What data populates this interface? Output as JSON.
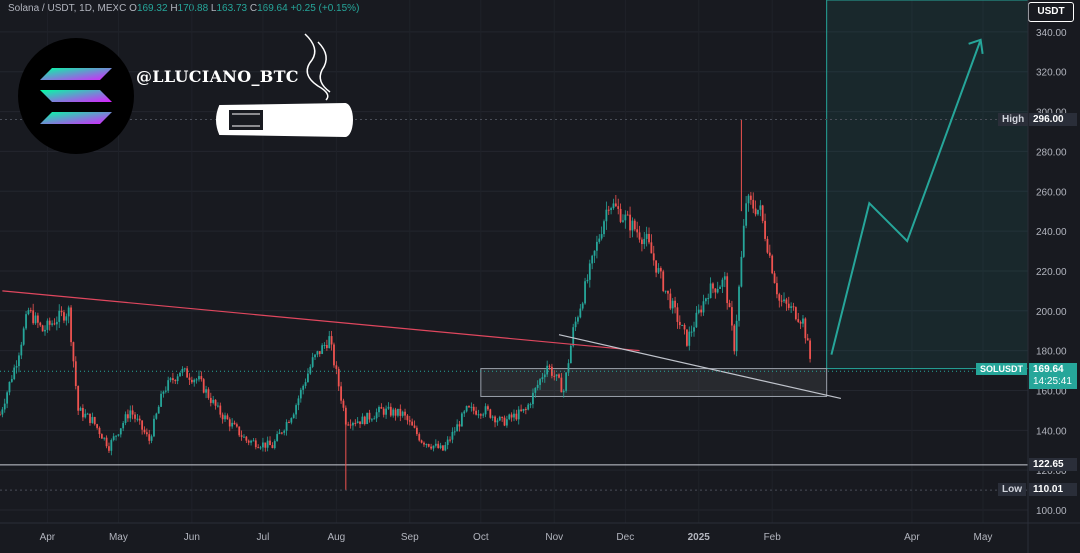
{
  "header": {
    "symbol_line": "Solana / USDT, 1D, MEXC",
    "open_label": "O",
    "open": "169.32",
    "high_label": "H",
    "high": "170.88",
    "low_label": "L",
    "low": "163.73",
    "close_label": "C",
    "close": "169.64",
    "change": "+0.25 (+0.15%)"
  },
  "watermark": {
    "handle": "@LLUCIANO_BTC",
    "logo": "solana-logo-icon",
    "illustration": "cigar-icon"
  },
  "currency_button": "USDT",
  "colors": {
    "up": "#26a69a",
    "down": "#ef5350",
    "background": "#181a20",
    "trendline": "#e0475e",
    "projection": "#26a69a"
  },
  "chart_data": {
    "type": "candlestick",
    "title": "",
    "y_ticks": [
      100,
      120,
      140,
      160,
      180,
      200,
      220,
      240,
      260,
      280,
      300,
      320,
      340
    ],
    "y_tick_labels": [
      "100.00",
      "120.00",
      "140.00",
      "160.00",
      "180.00",
      "200.00",
      "220.00",
      "240.00",
      "260.00",
      "280.00",
      "300.00",
      "320.00",
      "340.00"
    ],
    "ylim": [
      96,
      356
    ],
    "x_ticks": [
      "Apr",
      "May",
      "Jun",
      "Jul",
      "Aug",
      "Sep",
      "Oct",
      "Nov",
      "Dec",
      "2025",
      "Feb",
      "Apr",
      "May"
    ],
    "x_tick_dates": [
      "2024-04-01",
      "2024-05-01",
      "2024-06-01",
      "2024-07-01",
      "2024-08-01",
      "2024-09-01",
      "2024-10-01",
      "2024-11-01",
      "2024-12-01",
      "2025-01-01",
      "2025-02-01",
      "2025-04-01",
      "2025-05-01"
    ],
    "xlim": [
      "2024-03-12",
      "2025-05-20"
    ],
    "path_points": [
      [
        "2024-03-12",
        148
      ],
      [
        "2024-03-19",
        175
      ],
      [
        "2024-03-24",
        200
      ],
      [
        "2024-03-30",
        190
      ],
      [
        "2024-04-05",
        196
      ],
      [
        "2024-04-10",
        200
      ],
      [
        "2024-04-14",
        150
      ],
      [
        "2024-04-20",
        145
      ],
      [
        "2024-04-27",
        132
      ],
      [
        "2024-05-06",
        150
      ],
      [
        "2024-05-14",
        135
      ],
      [
        "2024-05-20",
        160
      ],
      [
        "2024-05-27",
        170
      ],
      [
        "2024-06-04",
        165
      ],
      [
        "2024-06-12",
        150
      ],
      [
        "2024-06-24",
        135
      ],
      [
        "2024-07-05",
        132
      ],
      [
        "2024-07-14",
        150
      ],
      [
        "2024-07-22",
        175
      ],
      [
        "2024-07-29",
        186
      ],
      [
        "2024-08-05",
        145
      ],
      [
        "2024-08-12",
        145
      ],
      [
        "2024-08-20",
        150
      ],
      [
        "2024-08-29",
        148
      ],
      [
        "2024-09-06",
        135
      ],
      [
        "2024-09-15",
        130
      ],
      [
        "2024-09-25",
        150
      ],
      [
        "2024-10-03",
        150
      ],
      [
        "2024-10-10",
        144
      ],
      [
        "2024-10-20",
        150
      ],
      [
        "2024-10-29",
        173
      ],
      [
        "2024-11-05",
        160
      ],
      [
        "2024-11-09",
        190
      ],
      [
        "2024-11-16",
        220
      ],
      [
        "2024-11-24",
        255
      ],
      [
        "2024-12-02",
        245
      ],
      [
        "2024-12-10",
        235
      ],
      [
        "2024-12-18",
        210
      ],
      [
        "2024-12-27",
        185
      ],
      [
        "2025-01-05",
        210
      ],
      [
        "2025-01-12",
        215
      ],
      [
        "2025-01-16",
        182
      ],
      [
        "2025-01-21",
        255
      ],
      [
        "2025-01-27",
        250
      ],
      [
        "2025-02-04",
        205
      ],
      [
        "2025-02-10",
        200
      ],
      [
        "2025-02-14",
        195
      ],
      [
        "2025-02-18",
        169.64
      ]
    ],
    "wick_marks": [
      {
        "date": "2024-08-05",
        "low": 110.01
      },
      {
        "date": "2025-01-19",
        "high": 296.0
      }
    ],
    "last_price": 169.64,
    "price_lines": [
      {
        "price": 169.64,
        "label": "SOLUSDT",
        "value": "169.64",
        "countdown": "14:25:41",
        "color": "#26a69a"
      },
      {
        "price": 122.65,
        "label": "",
        "value": "122.65",
        "color": "#d1d4dc"
      },
      {
        "price": 296.0,
        "label": "High",
        "value": "296.00",
        "color": "#d1d4dc"
      },
      {
        "price": 110.01,
        "label": "Low",
        "value": "110.01",
        "color": "#d1d4dc"
      }
    ],
    "drawings": {
      "descending_resistance": {
        "from": [
          "2024-03-13",
          210
        ],
        "to": [
          "2024-12-07",
          180
        ],
        "color": "#e0475e"
      },
      "support_trendline": {
        "from": [
          "2024-11-03",
          188
        ],
        "to": [
          "2025-03-02",
          156
        ],
        "color": "#c0c4cc"
      },
      "demand_zone": {
        "from_date": "2024-10-01",
        "to_date": "2025-02-24",
        "low": 157,
        "high": 171
      },
      "horizontal_support": 122.65,
      "target_box": {
        "from_date": "2025-02-24",
        "to_date": "2025-05-20",
        "low": 171,
        "high": 356
      },
      "projection_path": [
        [
          "2025-02-26",
          178
        ],
        [
          "2025-03-14",
          254
        ],
        [
          "2025-03-30",
          235
        ],
        [
          "2025-04-30",
          336
        ]
      ]
    }
  }
}
